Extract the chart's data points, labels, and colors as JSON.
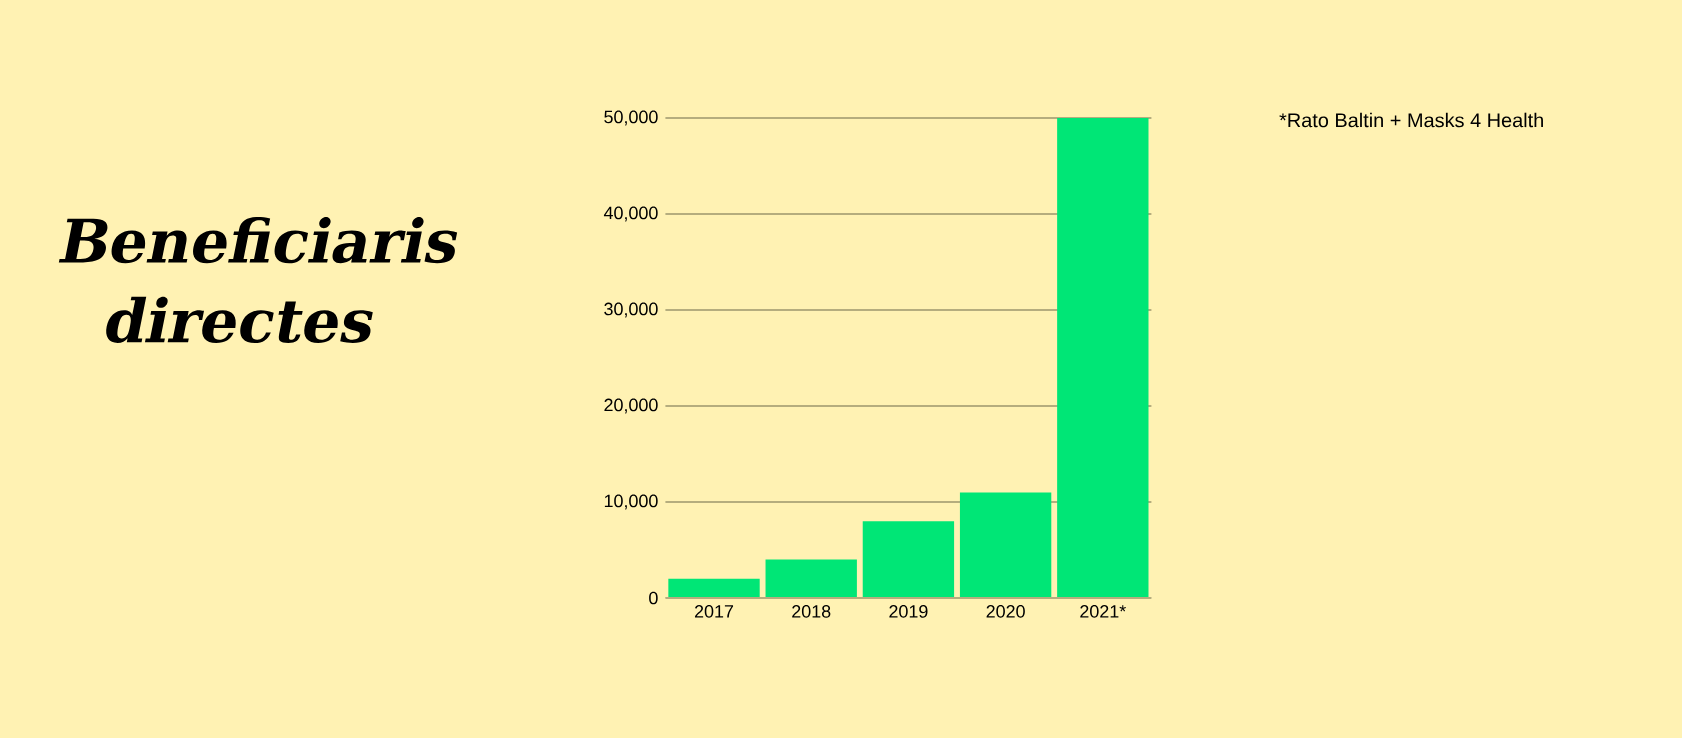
{
  "chart_data": {
    "type": "bar",
    "title": "Beneficiaris directes",
    "categories": [
      "2017",
      "2018",
      "2019",
      "2020",
      "2021*"
    ],
    "values": [
      2000,
      4000,
      8000,
      11000,
      50000
    ],
    "color": "#00e676",
    "ylim": [
      0,
      50000
    ],
    "yticks": [
      {
        "value": 0,
        "label": "0"
      },
      {
        "value": 10000,
        "label": "10,000"
      },
      {
        "value": 20000,
        "label": "20,000"
      },
      {
        "value": 30000,
        "label": "30,000"
      },
      {
        "value": 40000,
        "label": "40,000"
      },
      {
        "value": 50000,
        "label": "50,000"
      }
    ],
    "grid": "y",
    "annotations": [
      "*Rato Baltin + Masks 4 Health"
    ]
  }
}
